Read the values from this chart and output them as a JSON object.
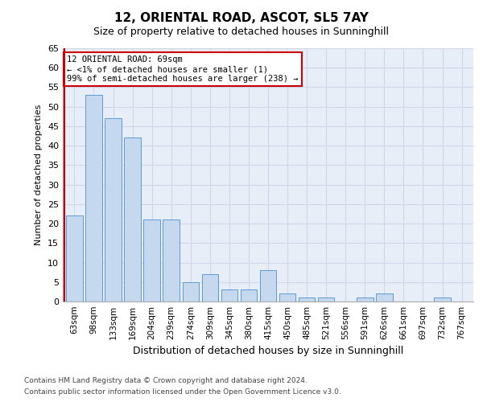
{
  "title1": "12, ORIENTAL ROAD, ASCOT, SL5 7AY",
  "title2": "Size of property relative to detached houses in Sunninghill",
  "xlabel": "Distribution of detached houses by size in Sunninghill",
  "ylabel": "Number of detached properties",
  "categories": [
    "63sqm",
    "98sqm",
    "133sqm",
    "169sqm",
    "204sqm",
    "239sqm",
    "274sqm",
    "309sqm",
    "345sqm",
    "380sqm",
    "415sqm",
    "450sqm",
    "485sqm",
    "521sqm",
    "556sqm",
    "591sqm",
    "626sqm",
    "661sqm",
    "697sqm",
    "732sqm",
    "767sqm"
  ],
  "values": [
    22,
    53,
    47,
    42,
    21,
    21,
    5,
    7,
    3,
    3,
    8,
    2,
    1,
    1,
    0,
    1,
    2,
    0,
    0,
    1,
    0
  ],
  "bar_color": "#c5d8ed",
  "bar_edge_color": "#5b9bd5",
  "annotation_text": "12 ORIENTAL ROAD: 69sqm\n← <1% of detached houses are smaller (1)\n99% of semi-detached houses are larger (238) →",
  "annotation_box_color": "#ffffff",
  "annotation_box_edge": "#cc0000",
  "ylim": [
    0,
    65
  ],
  "yticks": [
    0,
    5,
    10,
    15,
    20,
    25,
    30,
    35,
    40,
    45,
    50,
    55,
    60,
    65
  ],
  "footer1": "Contains HM Land Registry data © Crown copyright and database right 2024.",
  "footer2": "Contains public sector information licensed under the Open Government Licence v3.0.",
  "grid_color": "#d0d8e8",
  "bg_color": "#e8eef8",
  "red_line_color": "#cc0000",
  "title1_fontsize": 11,
  "title2_fontsize": 9,
  "ylabel_fontsize": 8,
  "xlabel_fontsize": 9,
  "footer_fontsize": 6.5,
  "ytick_fontsize": 8,
  "xtick_fontsize": 7.5
}
